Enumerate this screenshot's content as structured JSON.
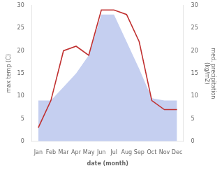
{
  "chart_data": {
    "type": "line",
    "categories": [
      "Jan",
      "Feb",
      "Mar",
      "Apr",
      "May",
      "Jun",
      "Jul",
      "Aug",
      "Sep",
      "Oct",
      "Nov",
      "Dec"
    ],
    "series": [
      {
        "type": "area",
        "axis": "y2",
        "color": "#c5cff0",
        "values": [
          9.0,
          9.0,
          12.0,
          15.0,
          19.0,
          28.0,
          28.0,
          22.0,
          16.0,
          9.5,
          9.0,
          9.0
        ]
      },
      {
        "type": "line",
        "color": "#c03030",
        "values": [
          3.0,
          9.0,
          20.0,
          21.0,
          19.0,
          29.0,
          29.0,
          28.0,
          22.0,
          9.0,
          7.0,
          7.0
        ]
      }
    ],
    "xlabel": "date (month)",
    "ylabel": "max temp (C)",
    "y2label": "med. precipitation\n(kg/m2)",
    "ylim": [
      0,
      30
    ],
    "yticks": [
      0,
      5,
      10,
      15,
      20,
      25,
      30
    ],
    "y2lim": [
      0,
      30
    ],
    "y2ticks": [
      0,
      5,
      10,
      15,
      20,
      25,
      30
    ],
    "grid": false
  }
}
